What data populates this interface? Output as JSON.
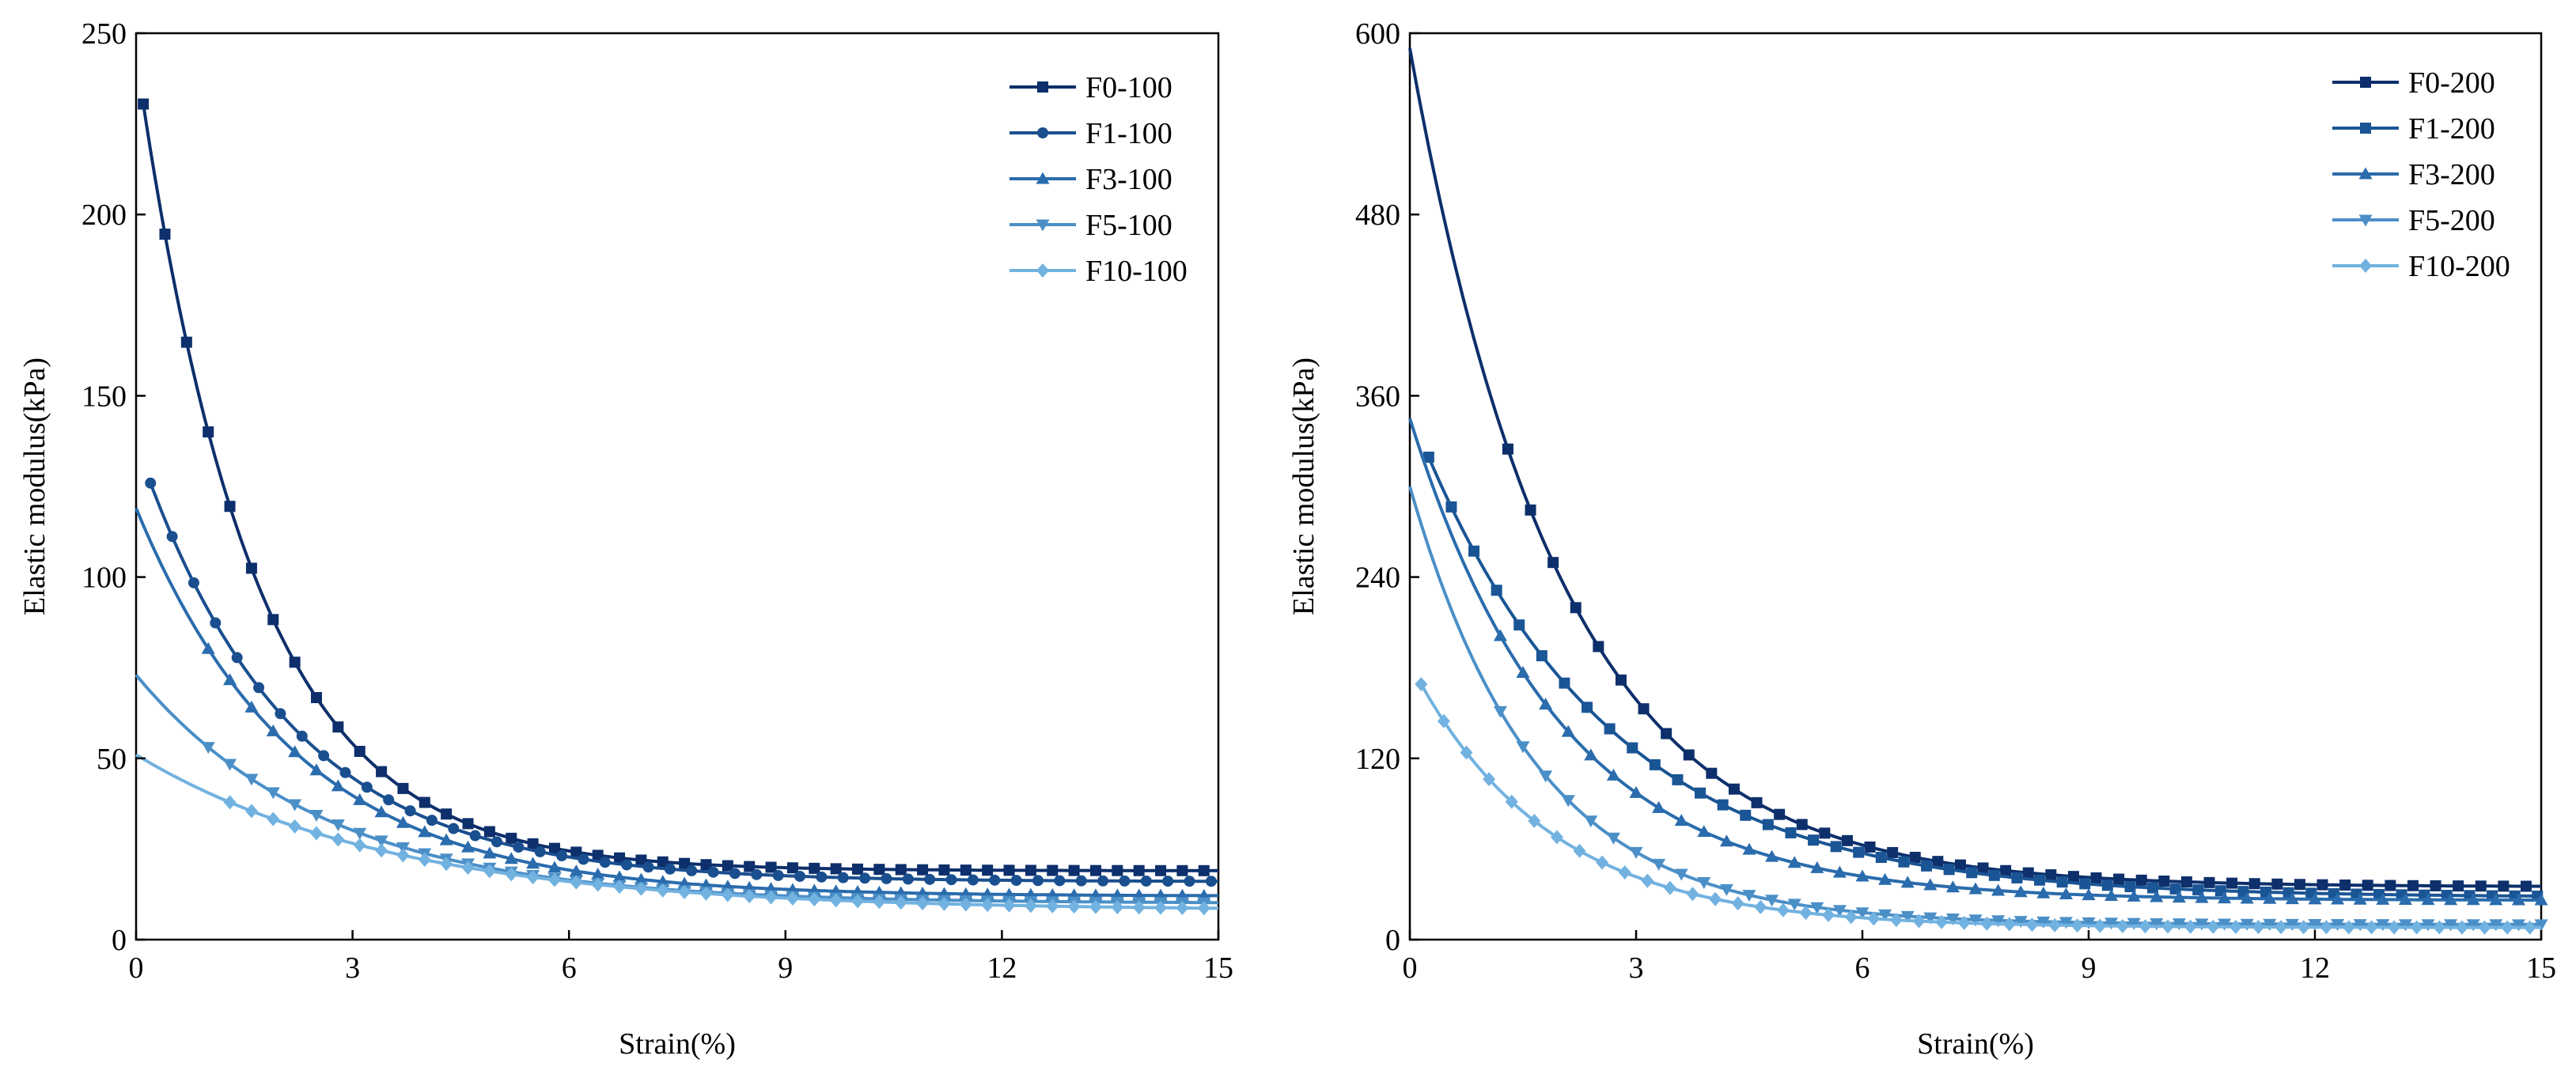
{
  "chart_data": [
    {
      "type": "line",
      "title": "",
      "xlabel": "Strain(%)",
      "ylabel": "Elastic modulus(kPa)",
      "xlim": [
        0,
        15
      ],
      "ylim": [
        0,
        250
      ],
      "xticks": [
        0,
        3,
        6,
        9,
        12,
        15
      ],
      "yticks": [
        0,
        50,
        100,
        150,
        200,
        250
      ],
      "grid": false,
      "legend_position": "top-right",
      "series": [
        {
          "name": "F0-100",
          "color": "#0d2f6b",
          "marker": "square",
          "start": 244,
          "end": 19,
          "k": 0.62,
          "mstart": 0.1,
          "mstep": 0.3
        },
        {
          "name": "F1-100",
          "color": "#1a4f8f",
          "marker": "circle",
          "start": 137,
          "end": 16,
          "k": 0.48,
          "mstart": 0.2,
          "mstep": 0.3
        },
        {
          "name": "F3-100",
          "color": "#2a6cad",
          "marker": "triangle-up",
          "start": 119,
          "end": 12,
          "k": 0.45,
          "mstart": 1.0,
          "mstep": 0.3
        },
        {
          "name": "F5-100",
          "color": "#4b8fc7",
          "marker": "triangle-down",
          "start": 73,
          "end": 10,
          "k": 0.38,
          "mstart": 1.0,
          "mstep": 0.3
        },
        {
          "name": "F10-100",
          "color": "#72b2e0",
          "marker": "diamond",
          "start": 51,
          "end": 8,
          "k": 0.28,
          "mstart": 1.3,
          "mstep": 0.3
        }
      ]
    },
    {
      "type": "line",
      "title": "",
      "xlabel": "Strain(%)",
      "ylabel": "Elastic modulus(kPa)",
      "xlim": [
        0,
        15
      ],
      "ylim": [
        0,
        600
      ],
      "xticks": [
        0,
        3,
        6,
        9,
        12,
        15
      ],
      "yticks": [
        0,
        120,
        240,
        360,
        480,
        600
      ],
      "grid": false,
      "legend_position": "top-right",
      "series": [
        {
          "name": "F0-200",
          "color": "#0d2f6b",
          "marker": "square",
          "start": 590,
          "end": 35,
          "k": 0.5,
          "mstart": 1.3,
          "mstep": 0.3
        },
        {
          "name": "F1-200",
          "color": "#1a5595",
          "marker": "square",
          "start": 350,
          "end": 28,
          "k": 0.4,
          "mstart": 0.25,
          "mstep": 0.3
        },
        {
          "name": "F3-200",
          "color": "#2a6cad",
          "marker": "triangle-up",
          "start": 345,
          "end": 26,
          "k": 0.5,
          "mstart": 1.2,
          "mstep": 0.3
        },
        {
          "name": "F5-200",
          "color": "#4b8fc7",
          "marker": "triangle-down",
          "start": 300,
          "end": 10,
          "k": 0.6,
          "mstart": 1.2,
          "mstep": 0.3
        },
        {
          "name": "F10-200",
          "color": "#72b2e0",
          "marker": "diamond",
          "start": 183,
          "end": 8,
          "k": 0.55,
          "mstart": 0.15,
          "mstep": 0.3
        }
      ]
    }
  ]
}
